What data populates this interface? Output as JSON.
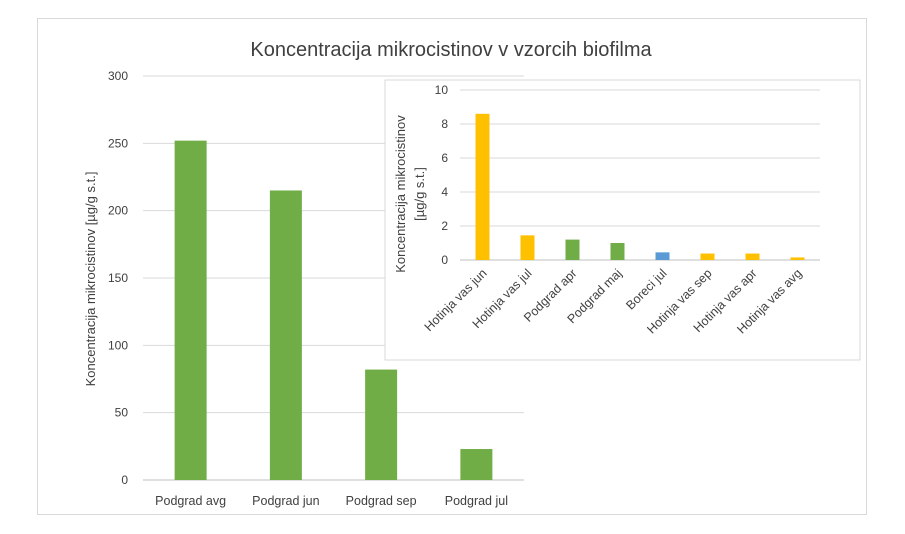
{
  "chart_data": [
    {
      "type": "bar",
      "title": "Koncentracija mikrocistinov v vzorcih biofilma",
      "ylabel": "Koncentracija mikrocistinov [µg/g s.t.]",
      "xlabel": "",
      "ylim": [
        0,
        300
      ],
      "yticks": [
        0,
        50,
        100,
        150,
        200,
        250,
        300
      ],
      "grid": true,
      "categories": [
        "Podgrad avg",
        "Podgrad jun",
        "Podgrad sep",
        "Podgrad jul"
      ],
      "values": [
        252,
        215,
        82,
        23
      ],
      "colors": [
        "#70ad47",
        "#70ad47",
        "#70ad47",
        "#70ad47"
      ]
    },
    {
      "type": "bar",
      "title": "",
      "ylabel_lines": [
        "Koncentracija mikrocistinov",
        "[µg/g s.t.]"
      ],
      "xlabel": "",
      "ylim": [
        0,
        10
      ],
      "yticks": [
        0,
        2,
        4,
        6,
        8,
        10
      ],
      "grid": true,
      "categories": [
        "Hotinja vas jun",
        "Hotinja vas jul",
        "Podgrad apr",
        "Podgrad maj",
        "Boreci jul",
        "Hotinja vas sep",
        "Hotinja vas apr",
        "Hotinja vas avg"
      ],
      "values": [
        8.6,
        1.45,
        1.2,
        1.0,
        0.45,
        0.38,
        0.38,
        0.15
      ],
      "colors": [
        "#ffc000",
        "#ffc000",
        "#70ad47",
        "#70ad47",
        "#5b9bd5",
        "#ffc000",
        "#ffc000",
        "#ffc000"
      ]
    }
  ]
}
